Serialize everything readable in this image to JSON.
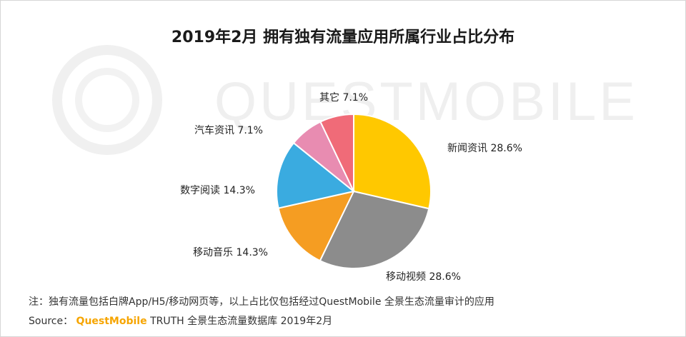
{
  "chart_data": {
    "type": "pie",
    "title": "2019年2月 拥有独有流量应用所属行业占比分布",
    "categories": [
      "新闻资讯",
      "移动视频",
      "移动音乐",
      "数字阅读",
      "汽车资讯",
      "其它"
    ],
    "values": [
      28.6,
      28.6,
      14.3,
      14.3,
      7.1,
      7.1
    ],
    "labels": [
      "新闻资讯 28.6%",
      "移动视频 28.6%",
      "移动音乐 14.3%",
      "数字阅读 14.3%",
      "汽车资讯 7.1%",
      "其它 7.1%"
    ],
    "colors": [
      "#ffc800",
      "#8c8c8c",
      "#f59d22",
      "#3aabe0",
      "#e88cb1",
      "#f06b78"
    ]
  },
  "watermark": "QUESTMOBILE",
  "footer": {
    "note": "注：独有流量包括白牌App/H5/移动网页等，以上占比仅包括经过QuestMobile 全景生态流量审计的应用",
    "source_prefix": "Source：",
    "source_brand": "QuestMobile",
    "source_rest": "TRUTH 全景生态流量数据库 2019年2月"
  }
}
